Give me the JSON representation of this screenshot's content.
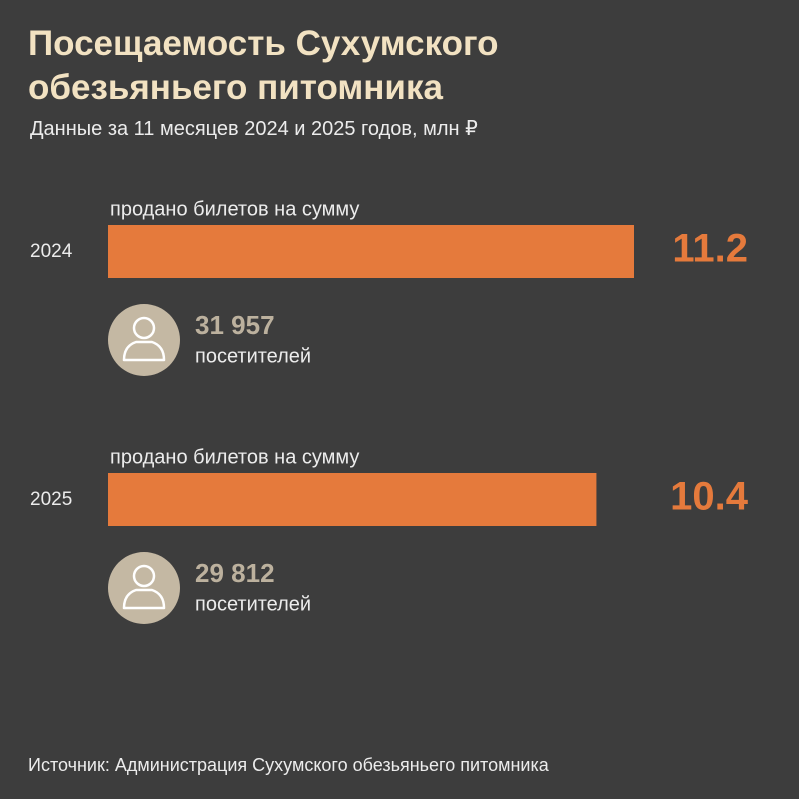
{
  "chart_data": {
    "type": "bar",
    "title": "Посещаемость Сухумского обезьяньего питомника",
    "subtitle": "Данные за 11 месяцев 2024 и 2025 годов, млн ₽",
    "categories": [
      "2024",
      "2025"
    ],
    "bar_label": "продано билетов на сумму",
    "values": [
      11.2,
      10.4
    ],
    "color": "#e57a3c",
    "visitors": {
      "values": [
        31957,
        29812
      ],
      "value_labels": [
        "31 957",
        "29 812"
      ],
      "label": "посетителей"
    },
    "source": "Источник: Администрация Сухумского обезьяньего питомника"
  }
}
